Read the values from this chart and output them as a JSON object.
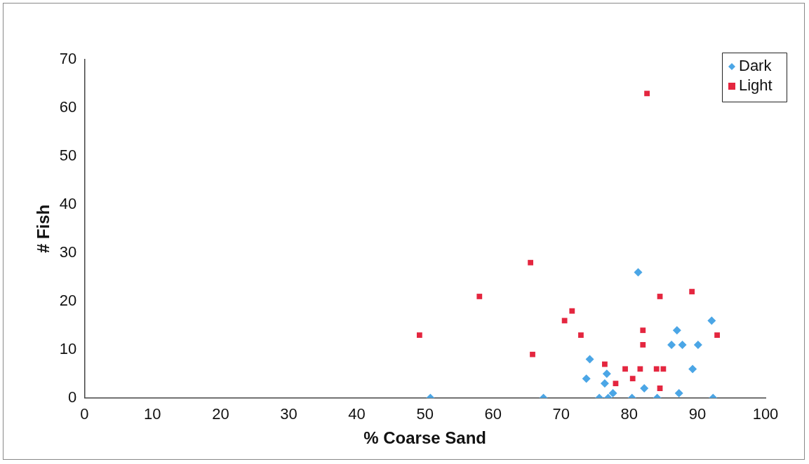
{
  "chart_data": {
    "type": "scatter",
    "xlabel": "% Coarse Sand",
    "ylabel": "# Fish",
    "xlim": [
      0,
      100
    ],
    "xticks": [
      0,
      10,
      20,
      30,
      40,
      50,
      60,
      70,
      80,
      90,
      100
    ],
    "ylim": [
      0,
      70
    ],
    "yticks": [
      0,
      10,
      20,
      30,
      40,
      50,
      60,
      70
    ],
    "grid": false,
    "legend": "top right",
    "series": [
      {
        "name": "Dark",
        "color": "#4ba6e6",
        "marker": "diamond",
        "x": [
          50.8,
          67.4,
          74.2,
          73.7,
          76.7,
          76.4,
          75.6,
          76.9,
          77.6,
          80.4,
          81.3,
          82.2,
          84.1,
          86.2,
          87.0,
          87.8,
          87.3,
          89.3,
          90.1,
          92.1,
          92.3
        ],
        "values": [
          0,
          0,
          8,
          4,
          5,
          3,
          0,
          0,
          1,
          0,
          26,
          2,
          0,
          11,
          14,
          11,
          1,
          6,
          11,
          16,
          0
        ]
      },
      {
        "name": "Light",
        "color": "#e4263f",
        "marker": "square",
        "x": [
          49.2,
          58.0,
          65.5,
          65.8,
          70.5,
          71.6,
          72.9,
          76.4,
          78.0,
          79.4,
          80.5,
          81.6,
          82.0,
          82.0,
          82.6,
          84.0,
          85.0,
          84.5,
          84.5,
          89.2,
          92.9
        ],
        "values": [
          13,
          21,
          28,
          9,
          16,
          18,
          13,
          7,
          3,
          6,
          4,
          6,
          14,
          11,
          63,
          6,
          6,
          2,
          21,
          22,
          13
        ]
      }
    ]
  }
}
